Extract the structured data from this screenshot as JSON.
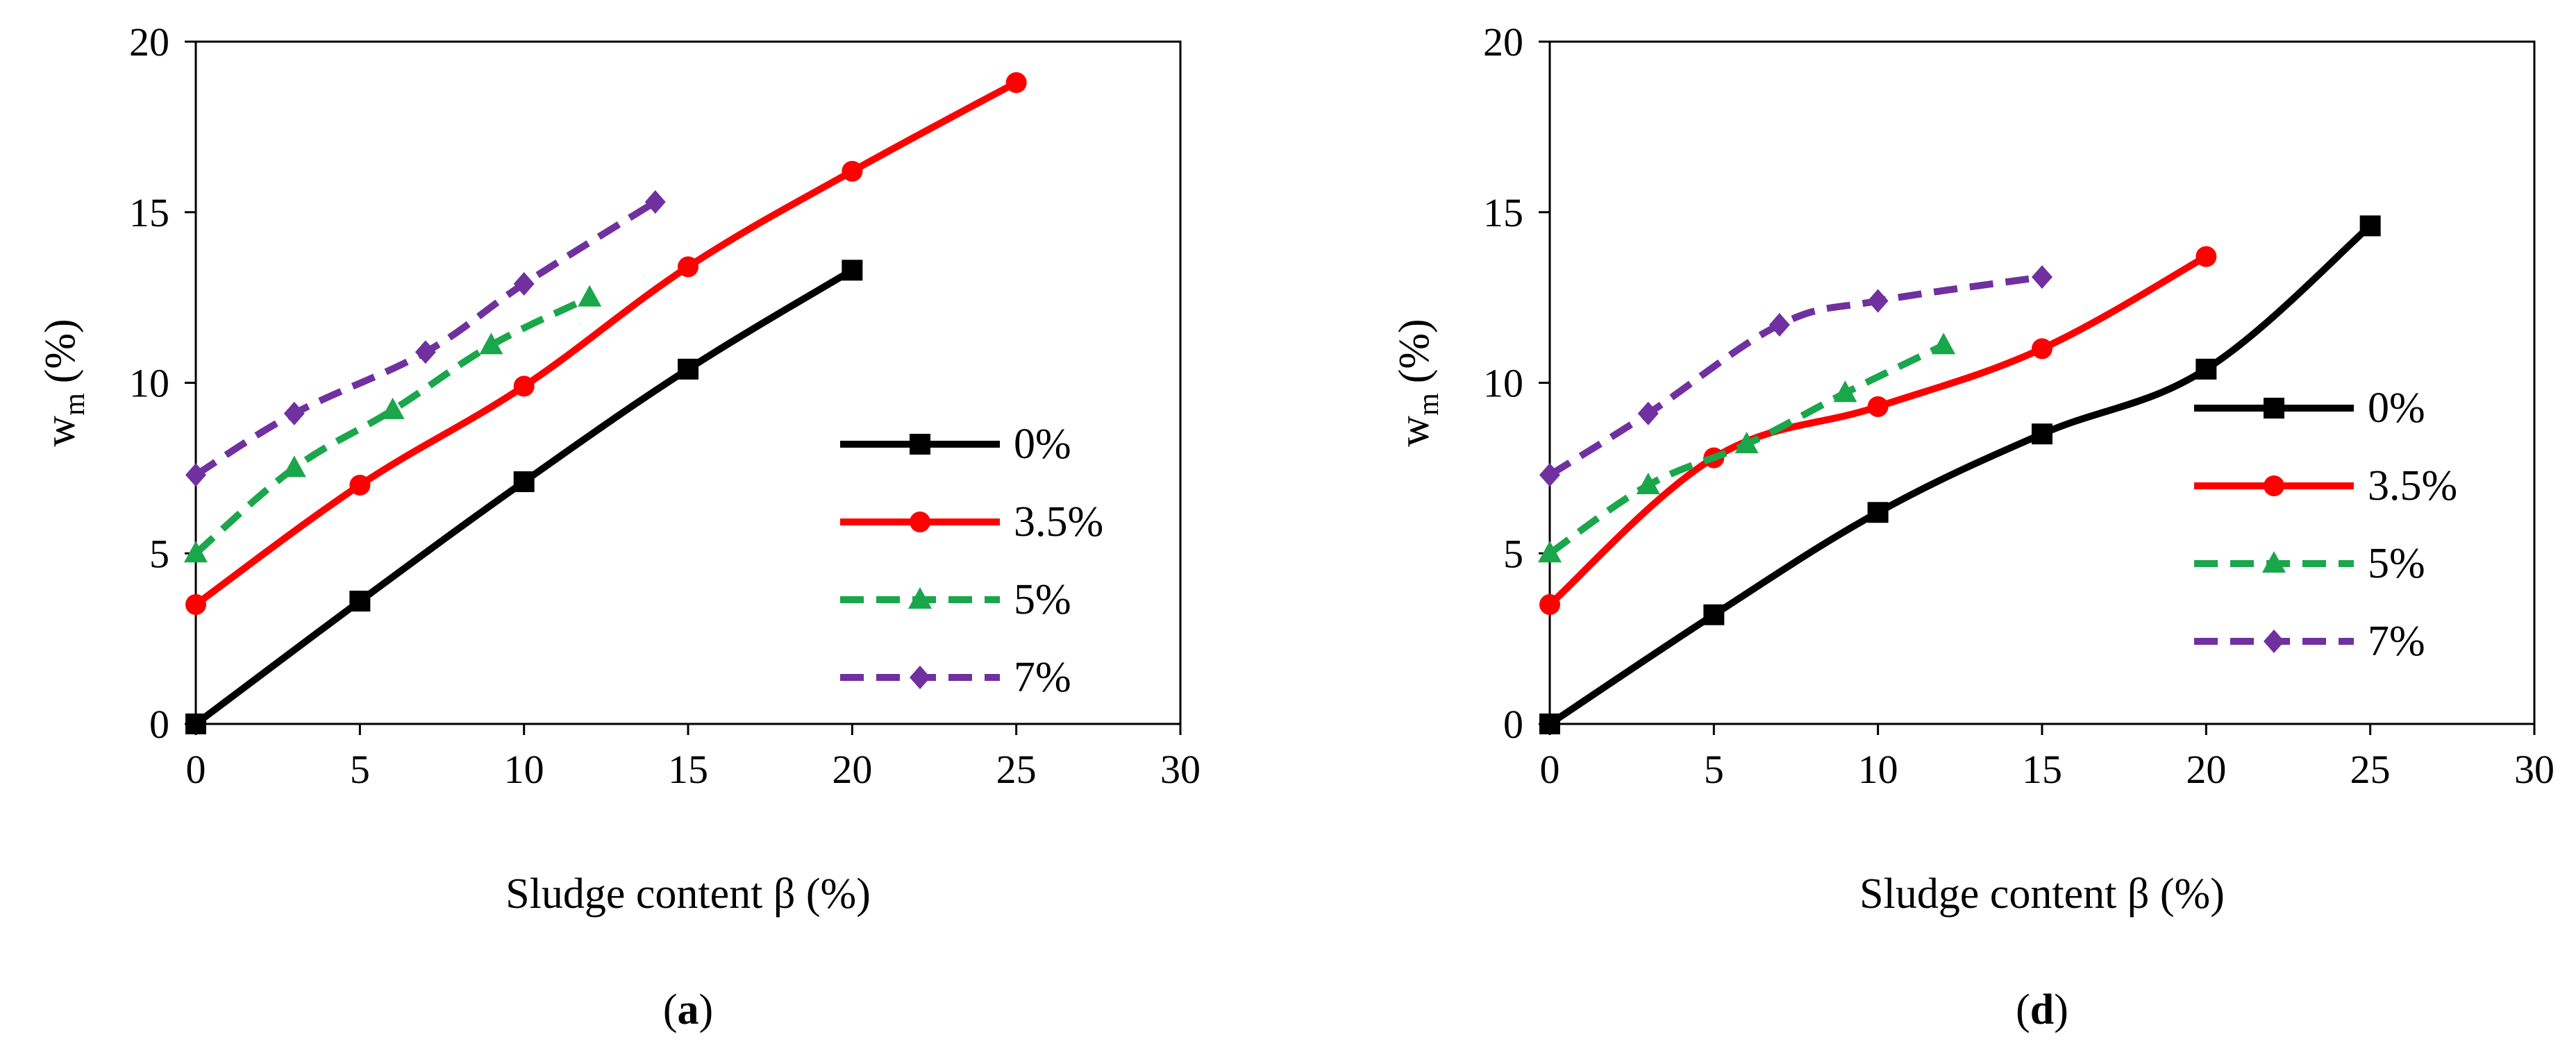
{
  "chart_data": [
    {
      "type": "line",
      "panel_label": "a",
      "xlabel": "Sludge content β (%)",
      "ylabel": "w",
      "ylabel_subscript": "m",
      "ylabel_unit": "(%)",
      "xlim": [
        0,
        30
      ],
      "ylim": [
        0,
        20
      ],
      "xticks": [
        0,
        5,
        10,
        15,
        20,
        25,
        30
      ],
      "yticks": [
        0,
        5,
        10,
        15,
        20
      ],
      "grid": false,
      "legend_position": "center-right",
      "series": [
        {
          "name": "0%",
          "color": "#000000",
          "dash": "solid",
          "marker": "square",
          "x": [
            0,
            5,
            10,
            15,
            20
          ],
          "y": [
            0,
            3.6,
            7.1,
            10.4,
            13.3
          ]
        },
        {
          "name": "3.5%",
          "color": "#ff0000",
          "dash": "solid",
          "marker": "circle",
          "x": [
            0,
            5,
            10,
            15,
            20,
            25
          ],
          "y": [
            3.5,
            7.0,
            9.9,
            13.4,
            16.2,
            18.8
          ]
        },
        {
          "name": "5%",
          "color": "#1aa64b",
          "dash": "dashed",
          "marker": "triangle",
          "x": [
            0,
            3,
            6,
            9,
            12
          ],
          "y": [
            5.0,
            7.5,
            9.2,
            11.1,
            12.5
          ]
        },
        {
          "name": "7%",
          "color": "#7030a0",
          "dash": "dashed",
          "marker": "diamond",
          "x": [
            0,
            3,
            7,
            10,
            14
          ],
          "y": [
            7.3,
            9.1,
            10.9,
            12.9,
            15.3
          ]
        }
      ]
    },
    {
      "type": "line",
      "panel_label": "d",
      "xlabel": "Sludge content β (%)",
      "ylabel": "w",
      "ylabel_subscript": "m",
      "ylabel_unit": "(%)",
      "xlim": [
        0,
        30
      ],
      "ylim": [
        0,
        20
      ],
      "xticks": [
        0,
        5,
        10,
        15,
        20,
        25,
        30
      ],
      "yticks": [
        0,
        5,
        10,
        15,
        20
      ],
      "grid": false,
      "legend_position": "center-right",
      "series": [
        {
          "name": "0%",
          "color": "#000000",
          "dash": "solid",
          "marker": "square",
          "x": [
            0,
            5,
            10,
            15,
            20,
            25
          ],
          "y": [
            0,
            3.2,
            6.2,
            8.5,
            10.4,
            14.6
          ]
        },
        {
          "name": "3.5%",
          "color": "#ff0000",
          "dash": "solid",
          "marker": "circle",
          "x": [
            0,
            5,
            10,
            15,
            20
          ],
          "y": [
            3.5,
            7.8,
            9.3,
            11.0,
            13.7
          ]
        },
        {
          "name": "5%",
          "color": "#1aa64b",
          "dash": "dashed",
          "marker": "triangle",
          "x": [
            0,
            3,
            6,
            9,
            12
          ],
          "y": [
            5.0,
            7.0,
            8.2,
            9.7,
            11.1
          ]
        },
        {
          "name": "7%",
          "color": "#7030a0",
          "dash": "dashed",
          "marker": "diamond",
          "x": [
            0,
            3,
            7,
            10,
            15
          ],
          "y": [
            7.3,
            9.1,
            11.7,
            12.4,
            13.1
          ]
        }
      ]
    }
  ]
}
